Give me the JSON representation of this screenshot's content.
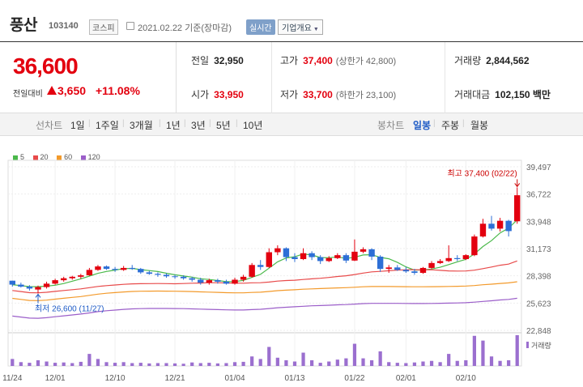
{
  "header": {
    "name": "풍산",
    "code": "103140",
    "market": "코스피",
    "date": "2021.02.22 기준(장마감)",
    "realtime": "실시간",
    "corp_info": "기업개요"
  },
  "quote": {
    "price": "36,600",
    "change_label": "전일대비",
    "change": "3,650",
    "change_pct": "+11.08%",
    "prev_label": "전일",
    "prev": "32,950",
    "high_label": "고가",
    "high": "37,400",
    "upper_limit": "(상한가 42,800)",
    "volume_label": "거래량",
    "volume": "2,844,562",
    "open_label": "시가",
    "open": "33,950",
    "low_label": "저가",
    "low": "33,700",
    "lower_limit": "(하한가 23,100)",
    "amount_label": "거래대금",
    "amount": "102,150 백만"
  },
  "tabs": {
    "line_chart": "선차트",
    "periods": [
      "1일",
      "1주일",
      "3개월",
      "1년",
      "3년",
      "5년",
      "10년"
    ],
    "candle_chart": "봉차트",
    "candle_types": [
      "일봉",
      "주봉",
      "월봉"
    ],
    "active_candle": "일봉"
  },
  "colors": {
    "up": "#e3000f",
    "down": "#2d6fd6",
    "ma5": "#4ab94a",
    "ma20": "#e84a4a",
    "ma60": "#f39a2b",
    "ma120": "#9b5ec9",
    "volume": "#9b6fcf"
  },
  "chart_data": {
    "type": "candlestick",
    "legend": [
      {
        "name": "5",
        "color": "#4ab94a"
      },
      {
        "name": "20",
        "color": "#e84a4a"
      },
      {
        "name": "60",
        "color": "#f39a2b"
      },
      {
        "name": "120",
        "color": "#9b5ec9"
      }
    ],
    "y_ticks": [
      "39,497",
      "36,722",
      "33,948",
      "31,173",
      "28,398",
      "25,623",
      "22,848"
    ],
    "ylim": [
      22848,
      39497
    ],
    "x_ticks": [
      {
        "label": "11/24",
        "i": 0
      },
      {
        "label": "12/01",
        "i": 5
      },
      {
        "label": "12/10",
        "i": 12
      },
      {
        "label": "12/21",
        "i": 19
      },
      {
        "label": "01/04",
        "i": 26
      },
      {
        "label": "01/13",
        "i": 33
      },
      {
        "label": "01/22",
        "i": 40
      },
      {
        "label": "02/01",
        "i": 46
      },
      {
        "label": "02/10",
        "i": 53
      }
    ],
    "high_annotation": "최고 37,400 (02/22)",
    "low_annotation": "최저 26,600 (11/27)",
    "volume_label": "거래량",
    "candles": [
      [
        27900,
        27900,
        27300,
        27500
      ],
      [
        27500,
        27700,
        27200,
        27300
      ],
      [
        27300,
        27450,
        26900,
        27100
      ],
      [
        27000,
        27400,
        26600,
        27250
      ],
      [
        27250,
        27800,
        27100,
        27600
      ],
      [
        27600,
        28100,
        27500,
        27950
      ],
      [
        27950,
        28300,
        27800,
        28150
      ],
      [
        28150,
        28400,
        28000,
        28300
      ],
      [
        28300,
        28600,
        28100,
        28450
      ],
      [
        28450,
        29200,
        28400,
        29000
      ],
      [
        29000,
        29500,
        28900,
        29350
      ],
      [
        29350,
        29450,
        29000,
        29100
      ],
      [
        29100,
        29300,
        28800,
        29000
      ],
      [
        29000,
        29400,
        28900,
        29200
      ],
      [
        29200,
        29500,
        29000,
        29100
      ],
      [
        29100,
        29200,
        28600,
        28750
      ],
      [
        28750,
        28900,
        28500,
        28600
      ],
      [
        28600,
        28750,
        28300,
        28500
      ],
      [
        28500,
        28650,
        28200,
        28350
      ],
      [
        28350,
        28500,
        28100,
        28300
      ],
      [
        28300,
        28450,
        28000,
        28150
      ],
      [
        28150,
        28300,
        27800,
        28000
      ],
      [
        28000,
        28200,
        27500,
        27700
      ],
      [
        27700,
        28100,
        27500,
        27950
      ],
      [
        27950,
        28100,
        27600,
        27800
      ],
      [
        27800,
        28000,
        27500,
        27600
      ],
      [
        27600,
        28200,
        27500,
        28000
      ],
      [
        28000,
        28500,
        27800,
        28300
      ],
      [
        28300,
        29700,
        28200,
        29500
      ],
      [
        29500,
        30000,
        29000,
        29300
      ],
      [
        29300,
        31200,
        29200,
        30800
      ],
      [
        30800,
        31500,
        30500,
        31200
      ],
      [
        31200,
        31300,
        29900,
        30300
      ],
      [
        30300,
        30700,
        29800,
        30100
      ],
      [
        30100,
        31200,
        30000,
        30700
      ],
      [
        30700,
        30900,
        30000,
        30300
      ],
      [
        30300,
        30500,
        29600,
        29900
      ],
      [
        29900,
        30400,
        29800,
        30200
      ],
      [
        30200,
        30700,
        30100,
        30500
      ],
      [
        30500,
        30700,
        29700,
        29950
      ],
      [
        29950,
        32100,
        29900,
        30850
      ],
      [
        30850,
        31300,
        30700,
        31100
      ],
      [
        31100,
        31200,
        30000,
        30350
      ],
      [
        30350,
        30500,
        28800,
        29100
      ],
      [
        29100,
        29500,
        28700,
        29250
      ],
      [
        29250,
        29500,
        28900,
        29000
      ],
      [
        29000,
        29300,
        28700,
        28850
      ],
      [
        28850,
        29100,
        28500,
        28700
      ],
      [
        28700,
        29300,
        28600,
        29200
      ],
      [
        29200,
        29900,
        29100,
        29700
      ],
      [
        29700,
        30100,
        29600,
        29900
      ],
      [
        29900,
        31500,
        29800,
        30200
      ],
      [
        30200,
        30500,
        29900,
        30100
      ],
      [
        30100,
        30600,
        30000,
        30500
      ],
      [
        30500,
        32600,
        30400,
        32400
      ],
      [
        32400,
        34200,
        32300,
        33700
      ],
      [
        33700,
        34500,
        33000,
        33200
      ],
      [
        33200,
        34300,
        32900,
        34000
      ],
      [
        34000,
        34100,
        32400,
        32950
      ],
      [
        33950,
        37400,
        33700,
        36600
      ]
    ],
    "volumes": [
      22,
      12,
      10,
      18,
      14,
      10,
      11,
      9,
      13,
      38,
      22,
      12,
      10,
      12,
      9,
      10,
      8,
      9,
      9,
      8,
      7,
      11,
      9,
      10,
      8,
      9,
      12,
      13,
      30,
      22,
      60,
      26,
      18,
      14,
      42,
      18,
      10,
      14,
      20,
      24,
      70,
      24,
      18,
      46,
      12,
      10,
      9,
      11,
      14,
      16,
      12,
      38,
      16,
      18,
      95,
      80,
      30,
      16,
      18,
      97
    ]
  }
}
